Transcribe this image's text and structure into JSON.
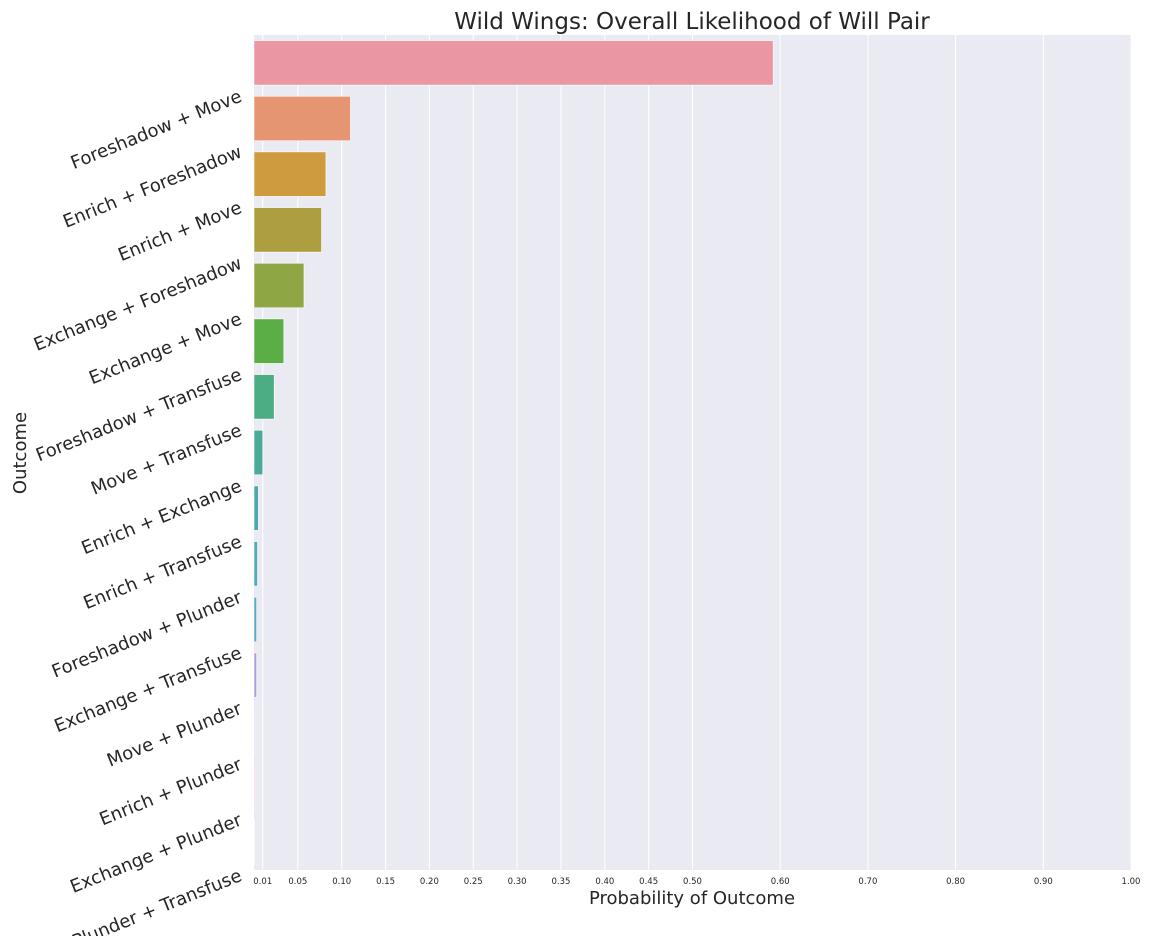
{
  "chart_data": {
    "type": "bar",
    "orientation": "horizontal",
    "title": "Wild Wings: Overall Likelihood of Will Pair",
    "xlabel": "Probability of Outcome",
    "ylabel": "Outcome",
    "xlim": [
      0,
      1.0
    ],
    "xticks": [
      0.01,
      0.05,
      0.1,
      0.15,
      0.2,
      0.25,
      0.3,
      0.35,
      0.4,
      0.45,
      0.5,
      0.6,
      0.7,
      0.8,
      0.9,
      1.0
    ],
    "xtick_labels": [
      "0.01",
      "0.05",
      "0.10",
      "0.15",
      "0.20",
      "0.25",
      "0.30",
      "0.35",
      "0.40",
      "0.45",
      "0.50",
      "0.60",
      "0.70",
      "0.80",
      "0.90",
      "1.00"
    ],
    "grid": true,
    "categories": [
      "Foreshadow + Move",
      "Enrich + Foreshadow",
      "Enrich + Move",
      "Exchange + Foreshadow",
      "Exchange + Move",
      "Foreshadow + Transfuse",
      "Move + Transfuse",
      "Enrich + Exchange",
      "Enrich + Transfuse",
      "Foreshadow + Plunder",
      "Exchange + Transfuse",
      "Move + Plunder",
      "Enrich + Plunder",
      "Exchange + Plunder",
      "Plunder + Transfuse"
    ],
    "values": [
      0.592,
      0.11,
      0.082,
      0.077,
      0.057,
      0.034,
      0.023,
      0.01,
      0.005,
      0.004,
      0.003,
      0.003,
      0.001,
      0.001,
      0.0005
    ],
    "colors": [
      "#ea96a3",
      "#e59571",
      "#cf9b3f",
      "#ad9f3f",
      "#8fa644",
      "#5aae45",
      "#4cad82",
      "#4bab98",
      "#4baaa9",
      "#4dabba",
      "#50aac8",
      "#a79fe2",
      "#d194e0",
      "#e68fd0",
      "#eb95be"
    ]
  }
}
